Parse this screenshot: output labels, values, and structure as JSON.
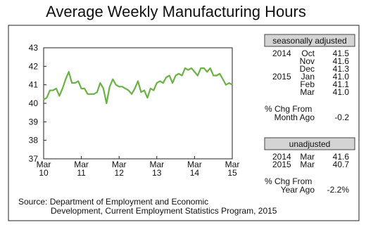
{
  "chart_data": {
    "type": "line",
    "title": "Average Weekly Manufacturing Hours",
    "categories": [
      "Mar 10",
      null,
      null,
      null,
      null,
      null,
      null,
      null,
      null,
      null,
      null,
      null,
      "Mar 11",
      null,
      null,
      null,
      null,
      null,
      null,
      null,
      null,
      null,
      null,
      null,
      "Mar 12",
      null,
      null,
      null,
      null,
      null,
      null,
      null,
      null,
      null,
      null,
      null,
      "Mar 13",
      null,
      null,
      null,
      null,
      null,
      null,
      null,
      null,
      null,
      null,
      null,
      "Mar 14",
      null,
      null,
      null,
      null,
      null,
      null,
      null,
      null,
      null,
      null,
      null,
      "Mar 15"
    ],
    "series": [
      {
        "name": "Average Weekly Manufacturing Hours",
        "color": "#6ab245",
        "values": [
          40.2,
          40.3,
          40.7,
          40.7,
          40.8,
          40.4,
          40.8,
          41.3,
          41.7,
          41.1,
          41.1,
          41.2,
          40.8,
          40.8,
          40.5,
          40.5,
          40.5,
          40.6,
          41.1,
          40.8,
          40.0,
          40.9,
          41.3,
          41.0,
          40.9,
          40.9,
          40.8,
          40.7,
          40.5,
          40.8,
          41.2,
          40.6,
          40.7,
          40.3,
          40.8,
          40.7,
          41.1,
          41.2,
          41.1,
          41.4,
          41.5,
          41.1,
          41.5,
          41.6,
          41.5,
          41.9,
          41.8,
          41.9,
          41.7,
          41.5,
          41.9,
          41.9,
          41.7,
          41.9,
          41.5,
          41.5,
          41.6,
          41.3,
          41.0,
          41.1,
          41.0
        ]
      }
    ],
    "ylim": [
      37,
      43
    ],
    "yticks": [
      37,
      38,
      39,
      40,
      41,
      42,
      43
    ],
    "grid": false
  },
  "panel": {
    "seasonally_adjusted": {
      "header": "seasonally adjusted",
      "rows": [
        {
          "year": "2014",
          "month": "Oct",
          "value": "41.5"
        },
        {
          "month": "Nov",
          "value": "41.6"
        },
        {
          "month": "Dec",
          "value": "41.3"
        },
        {
          "year": "2015",
          "month": "Jan",
          "value": "41.0"
        },
        {
          "month": "Feb",
          "value": "41.1"
        },
        {
          "month": "Mar",
          "value": "41.0"
        }
      ],
      "change": {
        "label": [
          "% Chg From",
          "Month Ago"
        ],
        "value": "-0.2"
      }
    },
    "unadjusted": {
      "header": "unadjusted",
      "rows": [
        {
          "year": "2014",
          "month": "Mar",
          "value": "41.6"
        },
        {
          "year": "2015",
          "month": "Mar",
          "value": "40.7"
        }
      ],
      "change": {
        "label": [
          "% Chg From",
          "Year Ago"
        ],
        "value": "-2.2%"
      }
    }
  },
  "source": [
    "Source: Department of Employment and Economic",
    "Development, Current Employment Statistics Program, 2015"
  ]
}
